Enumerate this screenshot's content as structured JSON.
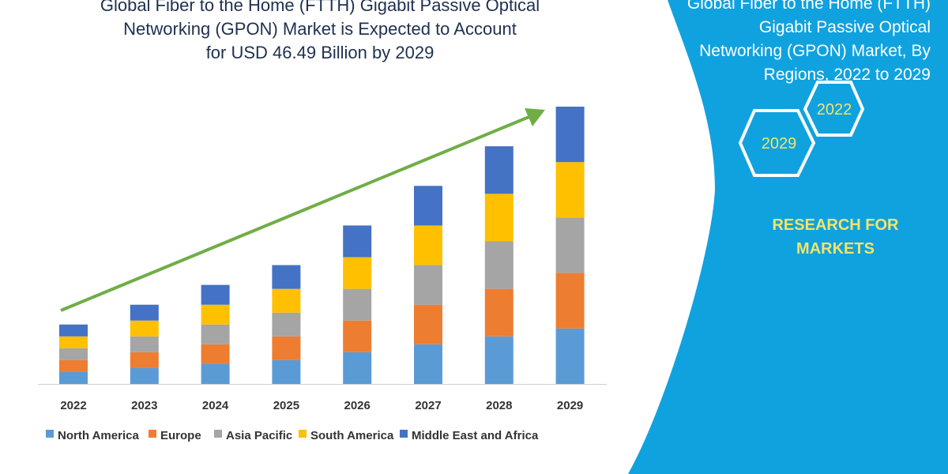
{
  "chart_data": {
    "type": "bar",
    "stacked": true,
    "title": [
      "Global Fiber to the Home (FTTH) Gigabit Passive Optical",
      "Networking (GPON) Market is Expected to Account",
      "for USD 46.49 Billion by 2029"
    ],
    "categories": [
      "2022",
      "2023",
      "2024",
      "2025",
      "2026",
      "2027",
      "2028",
      "2029"
    ],
    "series": [
      {
        "name": "North America",
        "color": "#5b9bd5",
        "values": [
          1.5,
          2,
          2.5,
          3,
          4,
          5,
          6,
          7
        ]
      },
      {
        "name": "Europe",
        "color": "#ed7d31",
        "values": [
          1.5,
          2,
          2.5,
          3,
          4,
          5,
          6,
          7
        ]
      },
      {
        "name": "Asia Pacific",
        "color": "#a5a5a5",
        "values": [
          1.5,
          2,
          2.5,
          3,
          4,
          5,
          6,
          7
        ]
      },
      {
        "name": "South America",
        "color": "#ffc000",
        "values": [
          1.5,
          2,
          2.5,
          3,
          4,
          5,
          6,
          7
        ]
      },
      {
        "name": "Middle East and Africa",
        "color": "#4472c4",
        "values": [
          1.5,
          2,
          2.5,
          3,
          4,
          5,
          6,
          7
        ]
      }
    ],
    "ylim": [
      0,
      35
    ],
    "grid": false,
    "legend": "bottom",
    "trend_arrow_color": "#70ad47"
  },
  "panel": {
    "title": [
      "Global Fiber to the Home (FTTH)",
      "Gigabit Passive Optical",
      "Networking (GPON) Market, By",
      "Regions, 2022 to 2029"
    ],
    "hex_labels": [
      "2022",
      "2029"
    ],
    "brand": [
      "RESEARCH FOR",
      "MARKETS"
    ],
    "color": "#10a2df"
  }
}
